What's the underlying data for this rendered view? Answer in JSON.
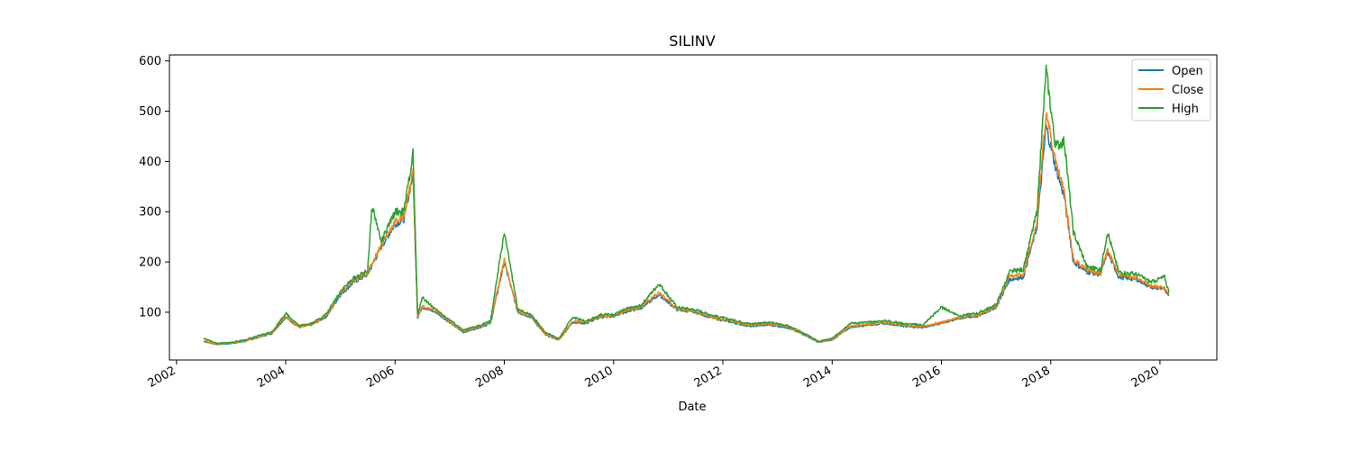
{
  "chart_data": {
    "type": "line",
    "title": "SILINV",
    "xlabel": "Date",
    "ylabel": "",
    "x_ticks": [
      "2002",
      "2004",
      "2006",
      "2008",
      "2010",
      "2012",
      "2014",
      "2016",
      "2018",
      "2020"
    ],
    "y_ticks": [
      100,
      200,
      300,
      400,
      500,
      600
    ],
    "xlim": [
      "2001-11-15",
      "2021-01-15"
    ],
    "ylim": [
      5,
      612
    ],
    "grid": false,
    "legend_position": "top-right",
    "series": [
      {
        "name": "Open",
        "color": "#1f77b4",
        "points": [
          [
            "2002-07-01",
            42
          ],
          [
            "2002-10-01",
            36
          ],
          [
            "2003-01-01",
            38
          ],
          [
            "2003-04-01",
            42
          ],
          [
            "2003-07-01",
            50
          ],
          [
            "2003-10-01",
            58
          ],
          [
            "2004-01-01",
            90
          ],
          [
            "2004-04-01",
            70
          ],
          [
            "2004-07-01",
            76
          ],
          [
            "2004-10-01",
            92
          ],
          [
            "2005-01-01",
            135
          ],
          [
            "2005-04-01",
            160
          ],
          [
            "2005-07-01",
            175
          ],
          [
            "2005-10-01",
            230
          ],
          [
            "2006-01-01",
            275
          ],
          [
            "2006-03-01",
            285
          ],
          [
            "2006-05-01",
            375
          ],
          [
            "2006-06-01",
            90
          ],
          [
            "2006-07-01",
            110
          ],
          [
            "2006-10-01",
            100
          ],
          [
            "2007-01-01",
            80
          ],
          [
            "2007-04-01",
            60
          ],
          [
            "2007-07-01",
            68
          ],
          [
            "2007-10-01",
            78
          ],
          [
            "2008-01-01",
            200
          ],
          [
            "2008-04-01",
            100
          ],
          [
            "2008-07-01",
            90
          ],
          [
            "2008-10-01",
            55
          ],
          [
            "2009-01-01",
            45
          ],
          [
            "2009-04-01",
            80
          ],
          [
            "2009-07-01",
            78
          ],
          [
            "2009-10-01",
            90
          ],
          [
            "2010-01-01",
            92
          ],
          [
            "2010-04-01",
            102
          ],
          [
            "2010-07-01",
            108
          ],
          [
            "2010-11-01",
            135
          ],
          [
            "2011-03-01",
            105
          ],
          [
            "2011-07-01",
            100
          ],
          [
            "2011-11-01",
            88
          ],
          [
            "2012-03-01",
            80
          ],
          [
            "2012-07-01",
            72
          ],
          [
            "2012-11-01",
            75
          ],
          [
            "2013-03-01",
            70
          ],
          [
            "2013-07-01",
            55
          ],
          [
            "2013-10-01",
            40
          ],
          [
            "2014-01-01",
            45
          ],
          [
            "2014-05-01",
            70
          ],
          [
            "2014-09-01",
            75
          ],
          [
            "2015-01-01",
            78
          ],
          [
            "2015-05-01",
            72
          ],
          [
            "2015-09-01",
            70
          ],
          [
            "2016-01-01",
            78
          ],
          [
            "2016-05-01",
            88
          ],
          [
            "2016-09-01",
            92
          ],
          [
            "2017-01-01",
            110
          ],
          [
            "2017-04-01",
            165
          ],
          [
            "2017-07-01",
            170
          ],
          [
            "2017-10-01",
            270
          ],
          [
            "2017-12-01",
            470
          ],
          [
            "2018-02-01",
            390
          ],
          [
            "2018-04-01",
            330
          ],
          [
            "2018-06-01",
            200
          ],
          [
            "2018-09-01",
            180
          ],
          [
            "2018-12-01",
            175
          ],
          [
            "2019-01-15",
            220
          ],
          [
            "2019-04-01",
            170
          ],
          [
            "2019-08-01",
            165
          ],
          [
            "2019-11-01",
            150
          ],
          [
            "2020-02-01",
            145
          ],
          [
            "2020-03-01",
            135
          ]
        ]
      },
      {
        "name": "Close",
        "color": "#ff7f0e",
        "points": [
          [
            "2002-07-01",
            43
          ],
          [
            "2002-10-01",
            37
          ],
          [
            "2003-01-01",
            39
          ],
          [
            "2003-04-01",
            43
          ],
          [
            "2003-07-01",
            51
          ],
          [
            "2003-10-01",
            59
          ],
          [
            "2004-01-01",
            92
          ],
          [
            "2004-04-01",
            71
          ],
          [
            "2004-07-01",
            77
          ],
          [
            "2004-10-01",
            94
          ],
          [
            "2005-01-01",
            138
          ],
          [
            "2005-04-01",
            163
          ],
          [
            "2005-07-01",
            178
          ],
          [
            "2005-10-01",
            235
          ],
          [
            "2006-01-01",
            280
          ],
          [
            "2006-03-01",
            290
          ],
          [
            "2006-05-01",
            380
          ],
          [
            "2006-06-01",
            92
          ],
          [
            "2006-07-01",
            112
          ],
          [
            "2006-10-01",
            102
          ],
          [
            "2007-01-01",
            82
          ],
          [
            "2007-04-01",
            62
          ],
          [
            "2007-07-01",
            70
          ],
          [
            "2007-10-01",
            80
          ],
          [
            "2008-01-01",
            205
          ],
          [
            "2008-04-01",
            102
          ],
          [
            "2008-07-01",
            92
          ],
          [
            "2008-10-01",
            57
          ],
          [
            "2009-01-01",
            46
          ],
          [
            "2009-04-01",
            82
          ],
          [
            "2009-07-01",
            80
          ],
          [
            "2009-10-01",
            92
          ],
          [
            "2010-01-01",
            94
          ],
          [
            "2010-04-01",
            104
          ],
          [
            "2010-07-01",
            110
          ],
          [
            "2010-11-01",
            140
          ],
          [
            "2011-03-01",
            107
          ],
          [
            "2011-07-01",
            102
          ],
          [
            "2011-11-01",
            90
          ],
          [
            "2012-03-01",
            82
          ],
          [
            "2012-07-01",
            74
          ],
          [
            "2012-11-01",
            77
          ],
          [
            "2013-03-01",
            72
          ],
          [
            "2013-07-01",
            56
          ],
          [
            "2013-10-01",
            41
          ],
          [
            "2014-01-01",
            46
          ],
          [
            "2014-05-01",
            72
          ],
          [
            "2014-09-01",
            77
          ],
          [
            "2015-01-01",
            80
          ],
          [
            "2015-05-01",
            74
          ],
          [
            "2015-09-01",
            72
          ],
          [
            "2016-01-01",
            80
          ],
          [
            "2016-05-01",
            90
          ],
          [
            "2016-09-01",
            94
          ],
          [
            "2017-01-01",
            112
          ],
          [
            "2017-04-01",
            170
          ],
          [
            "2017-07-01",
            175
          ],
          [
            "2017-10-01",
            280
          ],
          [
            "2017-12-01",
            500
          ],
          [
            "2018-02-01",
            400
          ],
          [
            "2018-04-01",
            340
          ],
          [
            "2018-06-01",
            205
          ],
          [
            "2018-09-01",
            185
          ],
          [
            "2018-12-01",
            178
          ],
          [
            "2019-01-15",
            225
          ],
          [
            "2019-04-01",
            175
          ],
          [
            "2019-08-01",
            168
          ],
          [
            "2019-11-01",
            152
          ],
          [
            "2020-02-01",
            148
          ],
          [
            "2020-03-01",
            137
          ]
        ]
      },
      {
        "name": "High",
        "color": "#2ca02c",
        "points": [
          [
            "2002-07-01",
            48
          ],
          [
            "2002-10-01",
            38
          ],
          [
            "2003-01-01",
            40
          ],
          [
            "2003-04-01",
            45
          ],
          [
            "2003-07-01",
            53
          ],
          [
            "2003-10-01",
            61
          ],
          [
            "2004-01-01",
            98
          ],
          [
            "2004-04-01",
            73
          ],
          [
            "2004-07-01",
            79
          ],
          [
            "2004-10-01",
            97
          ],
          [
            "2005-01-01",
            142
          ],
          [
            "2005-04-01",
            168
          ],
          [
            "2005-07-01",
            182
          ],
          [
            "2005-08-01",
            312
          ],
          [
            "2005-10-01",
            240
          ],
          [
            "2006-01-01",
            300
          ],
          [
            "2006-03-01",
            300
          ],
          [
            "2006-05-01",
            415
          ],
          [
            "2006-06-01",
            95
          ],
          [
            "2006-07-01",
            130
          ],
          [
            "2006-10-01",
            105
          ],
          [
            "2007-01-01",
            85
          ],
          [
            "2007-04-01",
            64
          ],
          [
            "2007-07-01",
            72
          ],
          [
            "2007-10-01",
            82
          ],
          [
            "2008-01-01",
            260
          ],
          [
            "2008-04-01",
            105
          ],
          [
            "2008-07-01",
            95
          ],
          [
            "2008-10-01",
            60
          ],
          [
            "2009-01-01",
            48
          ],
          [
            "2009-04-01",
            90
          ],
          [
            "2009-07-01",
            82
          ],
          [
            "2009-10-01",
            95
          ],
          [
            "2010-01-01",
            96
          ],
          [
            "2010-04-01",
            107
          ],
          [
            "2010-07-01",
            113
          ],
          [
            "2010-11-01",
            157
          ],
          [
            "2011-03-01",
            110
          ],
          [
            "2011-07-01",
            105
          ],
          [
            "2011-11-01",
            93
          ],
          [
            "2012-03-01",
            85
          ],
          [
            "2012-07-01",
            77
          ],
          [
            "2012-11-01",
            80
          ],
          [
            "2013-03-01",
            74
          ],
          [
            "2013-07-01",
            58
          ],
          [
            "2013-10-01",
            42
          ],
          [
            "2014-01-01",
            48
          ],
          [
            "2014-05-01",
            78
          ],
          [
            "2014-09-01",
            80
          ],
          [
            "2015-01-01",
            83
          ],
          [
            "2015-05-01",
            77
          ],
          [
            "2015-09-01",
            75
          ],
          [
            "2016-01-01",
            110
          ],
          [
            "2016-05-01",
            93
          ],
          [
            "2016-09-01",
            98
          ],
          [
            "2017-01-01",
            115
          ],
          [
            "2017-04-01",
            180
          ],
          [
            "2017-07-01",
            185
          ],
          [
            "2017-10-01",
            300
          ],
          [
            "2017-12-01",
            583
          ],
          [
            "2018-02-01",
            430
          ],
          [
            "2018-04-01",
            440
          ],
          [
            "2018-06-01",
            260
          ],
          [
            "2018-09-01",
            190
          ],
          [
            "2018-12-01",
            185
          ],
          [
            "2019-01-15",
            260
          ],
          [
            "2019-04-01",
            180
          ],
          [
            "2019-08-01",
            175
          ],
          [
            "2019-11-01",
            160
          ],
          [
            "2020-02-01",
            170
          ],
          [
            "2020-03-01",
            140
          ]
        ]
      }
    ]
  }
}
